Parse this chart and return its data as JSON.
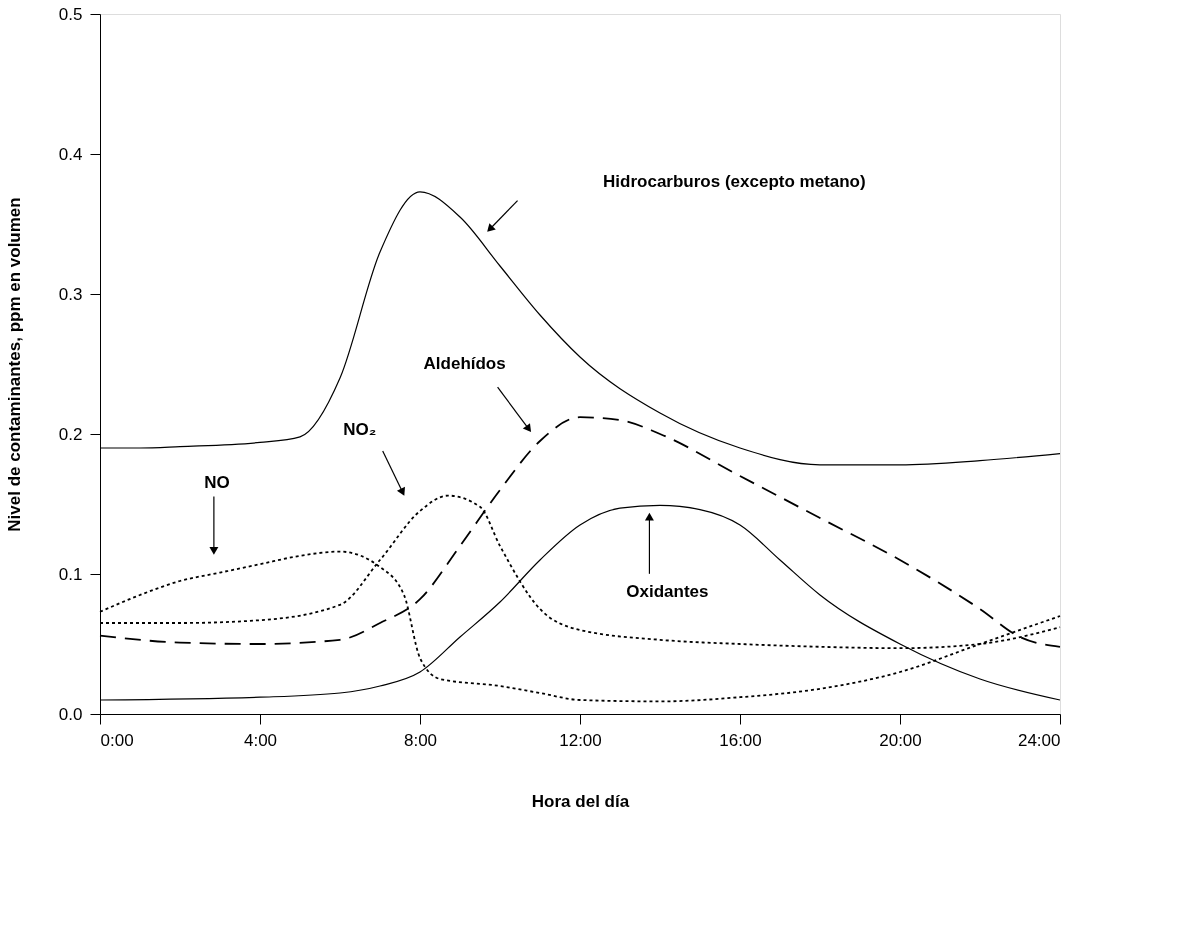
{
  "chart_data": {
    "type": "line",
    "xlabel": "Hora del día",
    "ylabel": "Nivel de contaminantes, ppm en volumen",
    "xlim": [
      0,
      24
    ],
    "ylim": [
      0,
      0.5
    ],
    "xticks": [
      {
        "value": 0,
        "label": "0:00"
      },
      {
        "value": 4,
        "label": "4:00"
      },
      {
        "value": 8,
        "label": "8:00"
      },
      {
        "value": 12,
        "label": "12:00"
      },
      {
        "value": 16,
        "label": "16:00"
      },
      {
        "value": 20,
        "label": "20:00"
      },
      {
        "value": 24,
        "label": "24:00"
      }
    ],
    "yticks": [
      {
        "value": 0,
        "label": "0.0"
      },
      {
        "value": 0.1,
        "label": "0.1"
      },
      {
        "value": 0.2,
        "label": "0.2"
      },
      {
        "value": 0.3,
        "label": "0.3"
      },
      {
        "value": 0.4,
        "label": "0.4"
      },
      {
        "value": 0.5,
        "label": "0.5"
      }
    ],
    "grid": false,
    "series": [
      {
        "color": "#000000",
        "line_style": "solid",
        "x": [
          0,
          1,
          2,
          4,
          5,
          6,
          7,
          8,
          9,
          10,
          11,
          12,
          14,
          16,
          18,
          20,
          22,
          24
        ],
        "values": [
          0.19,
          0.19,
          0.191,
          0.194,
          0.198,
          0.24,
          0.33,
          0.373,
          0.355,
          0.32,
          0.285,
          0.255,
          0.215,
          0.19,
          0.178,
          0.178,
          0.181,
          0.186
        ]
      },
      {
        "color": "#000000",
        "line_style": "dashed",
        "x": [
          0,
          2,
          4,
          6,
          7,
          8,
          9,
          10,
          11,
          12,
          13,
          14,
          16,
          18,
          20,
          22,
          23,
          24
        ],
        "values": [
          0.056,
          0.051,
          0.05,
          0.053,
          0.065,
          0.082,
          0.12,
          0.16,
          0.195,
          0.212,
          0.21,
          0.2,
          0.17,
          0.14,
          0.11,
          0.075,
          0.055,
          0.048
        ]
      },
      {
        "color": "#000000",
        "line_style": "dotted",
        "x": [
          0,
          2,
          4,
          6,
          7,
          8,
          8.7,
          9.5,
          10,
          11,
          12,
          14,
          16,
          18,
          20,
          22,
          24
        ],
        "values": [
          0.065,
          0.065,
          0.067,
          0.078,
          0.11,
          0.145,
          0.156,
          0.148,
          0.12,
          0.075,
          0.06,
          0.053,
          0.05,
          0.048,
          0.047,
          0.05,
          0.062
        ]
      },
      {
        "color": "#000000",
        "line_style": "dotted",
        "x": [
          0,
          1,
          2,
          3,
          4,
          5,
          6,
          7,
          7.6,
          8,
          8.5,
          10,
          11,
          12,
          14,
          16,
          18,
          20,
          22,
          24
        ],
        "values": [
          0.073,
          0.085,
          0.095,
          0.101,
          0.107,
          0.113,
          0.116,
          0.105,
          0.085,
          0.04,
          0.025,
          0.02,
          0.015,
          0.01,
          0.009,
          0.012,
          0.018,
          0.03,
          0.05,
          0.07
        ]
      },
      {
        "color": "#000000",
        "line_style": "solid",
        "x": [
          0,
          4,
          6,
          7,
          8,
          9,
          10,
          11,
          12,
          13,
          14,
          15,
          16,
          17,
          18,
          20,
          22,
          24
        ],
        "values": [
          0.01,
          0.012,
          0.015,
          0.02,
          0.03,
          0.055,
          0.08,
          0.11,
          0.135,
          0.147,
          0.149,
          0.146,
          0.135,
          0.11,
          0.085,
          0.05,
          0.025,
          0.01
        ]
      }
    ],
    "annotations": [
      "Hidrocarburos (excepto metano)",
      "Aldehídos",
      "NO₂",
      "NO",
      "Oxidantes"
    ]
  }
}
